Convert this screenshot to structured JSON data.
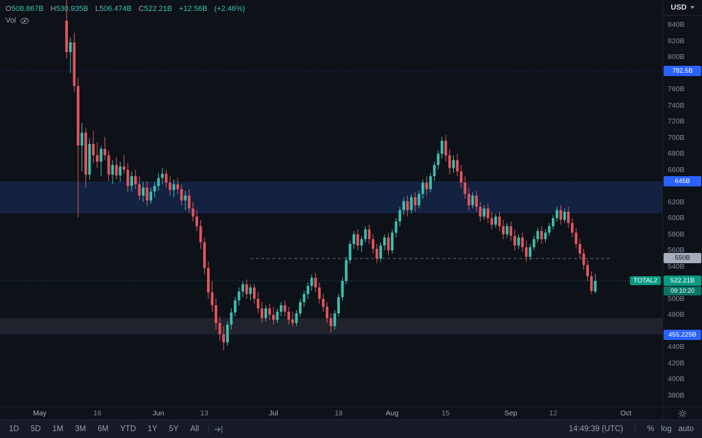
{
  "legend": {
    "items": [
      {
        "k": "O",
        "v": "508.867B"
      },
      {
        "k": "H",
        "v": "530.935B"
      },
      {
        "k": "L",
        "v": "506.474B"
      },
      {
        "k": "C",
        "v": "522.21B"
      }
    ],
    "change": "+12.56B",
    "change_pct": "(+2.46%)",
    "vol_label": "Vol"
  },
  "price_axis": {
    "currency": "USD",
    "ticks": [
      {
        "price": 840,
        "label": "840B"
      },
      {
        "price": 820,
        "label": "820B"
      },
      {
        "price": 800,
        "label": "800B"
      },
      {
        "price": 760,
        "label": "760B"
      },
      {
        "price": 740,
        "label": "740B"
      },
      {
        "price": 720,
        "label": "720B"
      },
      {
        "price": 700,
        "label": "700B"
      },
      {
        "price": 680,
        "label": "680B"
      },
      {
        "price": 660,
        "label": "660B"
      },
      {
        "price": 620,
        "label": "620B"
      },
      {
        "price": 600,
        "label": "600B"
      },
      {
        "price": 580,
        "label": "580B"
      },
      {
        "price": 560,
        "label": "560B"
      },
      {
        "price": 540,
        "label": "540B"
      },
      {
        "price": 500,
        "label": "500B"
      },
      {
        "price": 480,
        "label": "480B"
      },
      {
        "price": 440,
        "label": "440B"
      },
      {
        "price": 420,
        "label": "420B"
      },
      {
        "price": 400,
        "label": "400B"
      },
      {
        "price": 380,
        "label": "380B"
      }
    ],
    "badges": [
      {
        "price": 782.5,
        "label": "782.5B",
        "type": "blue"
      },
      {
        "price": 645,
        "label": "645B",
        "type": "blue"
      },
      {
        "price": 550,
        "label": "550B",
        "type": "gray"
      },
      {
        "price": 522.21,
        "label": "522.21B",
        "type": "last",
        "countdown": "09:10:20"
      },
      {
        "price": 455.225,
        "label": "455.225B",
        "type": "blue"
      }
    ]
  },
  "time_axis": {
    "labels": [
      {
        "label": "May",
        "day": 0,
        "major": true
      },
      {
        "label": "16",
        "day": 15,
        "major": false
      },
      {
        "label": "Jun",
        "day": 31,
        "major": true
      },
      {
        "label": "13",
        "day": 43,
        "major": false
      },
      {
        "label": "Jul",
        "day": 61,
        "major": true
      },
      {
        "label": "18",
        "day": 78,
        "major": false
      },
      {
        "label": "Aug",
        "day": 92,
        "major": true
      },
      {
        "label": "15",
        "day": 106,
        "major": false
      },
      {
        "label": "Sep",
        "day": 123,
        "major": true
      },
      {
        "label": "12",
        "day": 134,
        "major": false
      },
      {
        "label": "Oct",
        "day": 153,
        "major": true
      }
    ]
  },
  "toolbar": {
    "ranges": [
      "1D",
      "5D",
      "1M",
      "3M",
      "6M",
      "YTD",
      "1Y",
      "5Y",
      "All"
    ],
    "clock": "14:49:39 (UTC)",
    "percent_label": "%",
    "log_label": "log",
    "auto_label": "auto"
  },
  "colors": {
    "candle_up": "#3bc0ae",
    "candle_down": "#e4555e",
    "accent_blue": "#2962ff",
    "accent_teal": "#089981",
    "last_price_line": "rgba(59,192,174,0.55)"
  },
  "chart_data": {
    "type": "candlestick",
    "symbol": "TOTAL2",
    "interval": "1D",
    "units": "billions USD",
    "ohlc_last": {
      "open": 508.867,
      "high": 530.935,
      "low": 506.474,
      "close": 522.21,
      "change": 12.56,
      "change_pct": 2.46
    },
    "last_price": 522.21,
    "countdown": "09:10:20",
    "y_axis": {
      "visible_min": 367,
      "visible_max": 871,
      "tick_step": 20,
      "unit": "B"
    },
    "x_axis": {
      "start": "May",
      "end": "Oct",
      "scale": "daily"
    },
    "zones": [
      {
        "name": "resistance-zone",
        "price_from": 606,
        "price_to": 645,
        "color": "rgba(45,107,230,0.20)"
      },
      {
        "name": "support-zone",
        "price_from": 456,
        "price_to": 476,
        "color": "rgba(160,166,182,0.13)"
      }
    ],
    "levels": [
      {
        "price": 782.5,
        "color": "rgba(41,98,255,0.5)",
        "dash": "1 3"
      },
      {
        "price": 645,
        "color": "rgba(41,98,255,0.5)",
        "dash": "1 3"
      },
      {
        "price": 550,
        "color": "rgba(150,156,170,0.7)",
        "dash": "4 4",
        "from_day": 55,
        "to_day": 149
      },
      {
        "price": 455.225,
        "color": "rgba(41,98,255,0.5)",
        "dash": "1 3"
      }
    ],
    "candles": [
      [
        845,
        874,
        798,
        806
      ],
      [
        806,
        824,
        780,
        818
      ],
      [
        818,
        830,
        756,
        764
      ],
      [
        764,
        774,
        601,
        690
      ],
      [
        690,
        718,
        658,
        706
      ],
      [
        706,
        712,
        638,
        654
      ],
      [
        654,
        699,
        648,
        692
      ],
      [
        692,
        708,
        668,
        678
      ],
      [
        678,
        694,
        662,
        670
      ],
      [
        670,
        690,
        652,
        686
      ],
      [
        686,
        701,
        672,
        678
      ],
      [
        678,
        684,
        646,
        654
      ],
      [
        654,
        672,
        642,
        666
      ],
      [
        666,
        676,
        648,
        653
      ],
      [
        653,
        670,
        645,
        664
      ],
      [
        664,
        678,
        655,
        660
      ],
      [
        660,
        668,
        632,
        640
      ],
      [
        640,
        658,
        633,
        652
      ],
      [
        652,
        660,
        636,
        642
      ],
      [
        642,
        652,
        622,
        628
      ],
      [
        628,
        645,
        620,
        638
      ],
      [
        638,
        646,
        615,
        622
      ],
      [
        622,
        638,
        618,
        633
      ],
      [
        633,
        645,
        626,
        640
      ],
      [
        640,
        656,
        634,
        650
      ],
      [
        650,
        662,
        642,
        655
      ],
      [
        655,
        660,
        638,
        644
      ],
      [
        644,
        652,
        628,
        635
      ],
      [
        635,
        648,
        626,
        642
      ],
      [
        642,
        650,
        630,
        636
      ],
      [
        636,
        642,
        616,
        622
      ],
      [
        622,
        634,
        610,
        628
      ],
      [
        628,
        636,
        606,
        612
      ],
      [
        612,
        620,
        596,
        602
      ],
      [
        602,
        610,
        584,
        590
      ],
      [
        590,
        598,
        562,
        570
      ],
      [
        570,
        576,
        530,
        538
      ],
      [
        538,
        546,
        500,
        508
      ],
      [
        508,
        522,
        484,
        492
      ],
      [
        492,
        500,
        462,
        470
      ],
      [
        470,
        478,
        448,
        456
      ],
      [
        456,
        466,
        436,
        446
      ],
      [
        446,
        472,
        442,
        468
      ],
      [
        468,
        488,
        462,
        483
      ],
      [
        483,
        502,
        478,
        498
      ],
      [
        498,
        514,
        492,
        509
      ],
      [
        509,
        522,
        502,
        518
      ],
      [
        518,
        524,
        500,
        506
      ],
      [
        506,
        518,
        498,
        514
      ],
      [
        514,
        518,
        494,
        500
      ],
      [
        500,
        508,
        482,
        488
      ],
      [
        488,
        496,
        470,
        476
      ],
      [
        476,
        492,
        472,
        488
      ],
      [
        488,
        494,
        474,
        480
      ],
      [
        480,
        490,
        468,
        474
      ],
      [
        474,
        488,
        470,
        484
      ],
      [
        484,
        496,
        478,
        492
      ],
      [
        492,
        498,
        478,
        484
      ],
      [
        484,
        490,
        468,
        474
      ],
      [
        474,
        484,
        466,
        470
      ],
      [
        470,
        486,
        466,
        482
      ],
      [
        482,
        500,
        478,
        496
      ],
      [
        496,
        510,
        490,
        506
      ],
      [
        506,
        520,
        500,
        516
      ],
      [
        516,
        530,
        510,
        526
      ],
      [
        526,
        532,
        508,
        514
      ],
      [
        514,
        520,
        494,
        500
      ],
      [
        500,
        506,
        484,
        490
      ],
      [
        490,
        496,
        470,
        476
      ],
      [
        476,
        482,
        458,
        466
      ],
      [
        466,
        486,
        462,
        482
      ],
      [
        482,
        506,
        478,
        502
      ],
      [
        502,
        526,
        498,
        522
      ],
      [
        522,
        552,
        518,
        548
      ],
      [
        548,
        572,
        544,
        568
      ],
      [
        568,
        584,
        562,
        580
      ],
      [
        580,
        586,
        560,
        566
      ],
      [
        566,
        578,
        558,
        574
      ],
      [
        574,
        590,
        570,
        586
      ],
      [
        586,
        592,
        568,
        574
      ],
      [
        574,
        580,
        556,
        562
      ],
      [
        562,
        568,
        544,
        550
      ],
      [
        550,
        570,
        546,
        566
      ],
      [
        566,
        580,
        560,
        576
      ],
      [
        576,
        582,
        554,
        560
      ],
      [
        560,
        586,
        556,
        582
      ],
      [
        582,
        600,
        576,
        596
      ],
      [
        596,
        614,
        590,
        610
      ],
      [
        610,
        626,
        604,
        621
      ],
      [
        621,
        628,
        602,
        610
      ],
      [
        610,
        630,
        606,
        626
      ],
      [
        626,
        632,
        608,
        616
      ],
      [
        616,
        634,
        612,
        630
      ],
      [
        630,
        648,
        624,
        644
      ],
      [
        644,
        652,
        628,
        636
      ],
      [
        636,
        656,
        632,
        652
      ],
      [
        652,
        670,
        646,
        666
      ],
      [
        666,
        684,
        660,
        680
      ],
      [
        680,
        701,
        674,
        696
      ],
      [
        696,
        703,
        670,
        678
      ],
      [
        678,
        686,
        654,
        662
      ],
      [
        662,
        678,
        656,
        672
      ],
      [
        672,
        680,
        652,
        658
      ],
      [
        658,
        666,
        638,
        644
      ],
      [
        644,
        652,
        624,
        630
      ],
      [
        630,
        638,
        610,
        616
      ],
      [
        616,
        632,
        612,
        628
      ],
      [
        628,
        634,
        608,
        614
      ],
      [
        614,
        620,
        596,
        602
      ],
      [
        602,
        616,
        598,
        612
      ],
      [
        612,
        618,
        594,
        600
      ],
      [
        600,
        608,
        586,
        592
      ],
      [
        592,
        606,
        588,
        602
      ],
      [
        602,
        608,
        584,
        590
      ],
      [
        590,
        598,
        574,
        580
      ],
      [
        580,
        594,
        576,
        590
      ],
      [
        590,
        596,
        572,
        578
      ],
      [
        578,
        586,
        560,
        566
      ],
      [
        566,
        580,
        562,
        576
      ],
      [
        576,
        582,
        558,
        564
      ],
      [
        564,
        572,
        546,
        552
      ],
      [
        552,
        568,
        548,
        564
      ],
      [
        564,
        578,
        560,
        574
      ],
      [
        574,
        588,
        570,
        584
      ],
      [
        584,
        590,
        568,
        574
      ],
      [
        574,
        586,
        570,
        582
      ],
      [
        582,
        594,
        578,
        590
      ],
      [
        590,
        604,
        586,
        600
      ],
      [
        600,
        614,
        596,
        610
      ],
      [
        610,
        616,
        592,
        598
      ],
      [
        598,
        612,
        594,
        608
      ],
      [
        608,
        614,
        588,
        594
      ],
      [
        594,
        600,
        576,
        582
      ],
      [
        582,
        588,
        562,
        568
      ],
      [
        568,
        574,
        550,
        556
      ],
      [
        556,
        562,
        536,
        542
      ],
      [
        542,
        548,
        522,
        528
      ],
      [
        528,
        534,
        506,
        509.7
      ],
      [
        508.867,
        530.935,
        506.474,
        522.21
      ]
    ]
  }
}
